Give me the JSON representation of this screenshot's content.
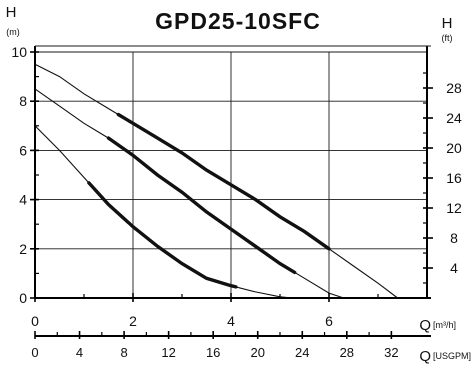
{
  "chart_data": {
    "type": "line",
    "title": "GPD25-10SFC",
    "left_axis": {
      "label": "H",
      "unit": "(m)",
      "ticks": [
        0,
        2,
        4,
        6,
        8,
        10
      ],
      "range": [
        0,
        10
      ]
    },
    "right_axis": {
      "label": "H",
      "unit": "(ft)",
      "ticks": [
        4,
        8,
        12,
        16,
        20,
        24,
        28
      ],
      "range": [
        0,
        32.8
      ]
    },
    "x_axis_primary": {
      "label": "Q",
      "unit": "[m³/h]",
      "ticks": [
        0,
        2,
        4,
        6
      ],
      "range": [
        0,
        8
      ]
    },
    "x_axis_secondary": {
      "label": "Q",
      "unit": "[USGPM]",
      "ticks": [
        0,
        4,
        8,
        12,
        16,
        20,
        24,
        28,
        32
      ],
      "range": [
        0,
        35.2
      ]
    },
    "grid": true,
    "series": [
      {
        "x": [
          0,
          0.5,
          1,
          1.5,
          2,
          2.5,
          3,
          3.5,
          4,
          4.5,
          5,
          5.25
        ],
        "y": [
          7.0,
          6.0,
          4.9,
          3.8,
          2.9,
          2.1,
          1.4,
          0.8,
          0.5,
          0.25,
          0.05,
          0.0
        ],
        "highlight_range": [
          1.1,
          4.1
        ]
      },
      {
        "x": [
          0,
          0.5,
          1,
          1.5,
          2,
          2.5,
          3,
          3.5,
          4,
          4.5,
          5,
          5.5,
          6,
          6.3
        ],
        "y": [
          8.5,
          7.8,
          7.1,
          6.5,
          5.8,
          5.0,
          4.3,
          3.5,
          2.8,
          2.1,
          1.4,
          0.8,
          0.2,
          0.0
        ],
        "highlight_range": [
          1.5,
          5.3
        ]
      },
      {
        "x": [
          0,
          0.5,
          1,
          1.5,
          2,
          2.5,
          3,
          3.5,
          4,
          4.5,
          5,
          5.5,
          6,
          6.5,
          7,
          7.4
        ],
        "y": [
          9.5,
          9.0,
          8.3,
          7.7,
          7.1,
          6.5,
          5.9,
          5.2,
          4.6,
          4.0,
          3.3,
          2.7,
          2.0,
          1.3,
          0.6,
          0.0
        ],
        "highlight_range": [
          1.7,
          6.0
        ]
      }
    ]
  }
}
